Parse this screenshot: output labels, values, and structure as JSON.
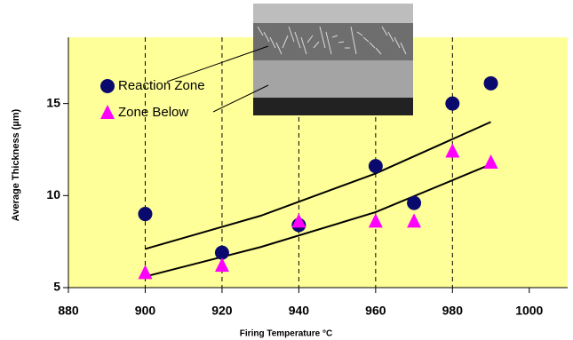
{
  "chart_data": {
    "type": "scatter",
    "xlabel": "Firing Temperature °C",
    "ylabel": "Average Thickness (µm)",
    "xlim": [
      880,
      1010
    ],
    "xticks": [
      880,
      900,
      920,
      940,
      960,
      980,
      1000
    ],
    "ylim": [
      5,
      18.6
    ],
    "yticks": [
      5,
      10,
      15
    ],
    "grid_x": [
      900,
      920,
      940,
      960,
      980
    ],
    "series": [
      {
        "name": "Reaction Zone",
        "color": "#0a0a6e",
        "marker": "circle",
        "x": [
          900,
          920,
          940,
          960,
          970,
          980,
          990
        ],
        "values": [
          9.0,
          6.9,
          8.4,
          11.6,
          9.6,
          15.0,
          16.1
        ]
      },
      {
        "name": "Zone Below",
        "color": "#ff00ff",
        "marker": "triangle",
        "x": [
          900,
          920,
          940,
          960,
          970,
          980,
          990
        ],
        "values": [
          5.8,
          6.2,
          8.6,
          8.6,
          8.6,
          12.4,
          11.8
        ]
      }
    ],
    "trendlines": [
      {
        "color": "#000000",
        "x": [
          900,
          930,
          960,
          990
        ],
        "values": [
          7.1,
          8.9,
          11.2,
          14.0
        ]
      },
      {
        "color": "#000000",
        "x": [
          900,
          930,
          960,
          990
        ],
        "values": [
          5.6,
          7.2,
          9.1,
          11.7
        ]
      }
    ]
  }
}
